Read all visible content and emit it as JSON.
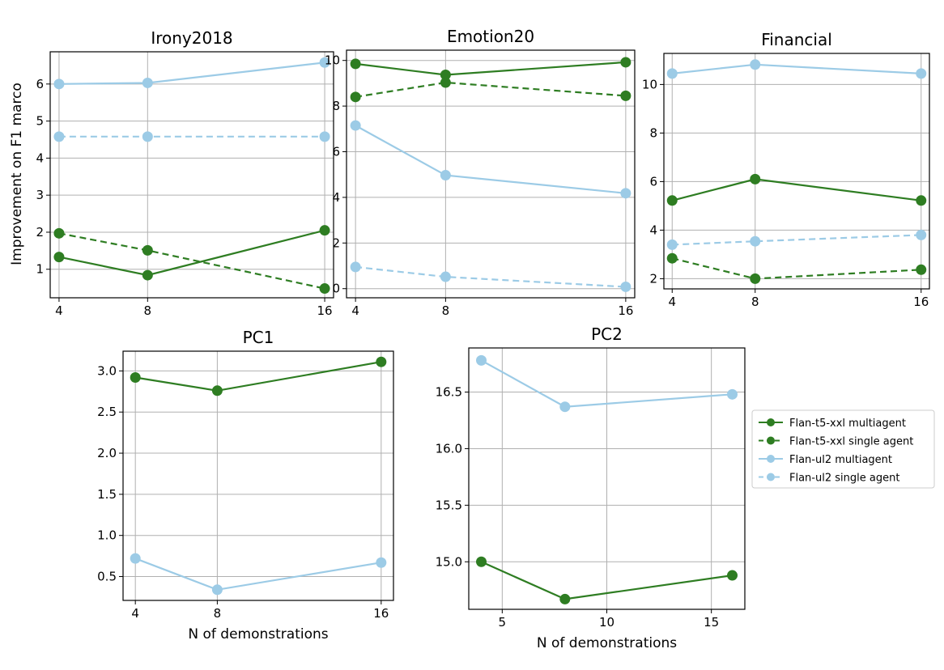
{
  "figure": {
    "ylabel": "Improvement on F1 marco",
    "legend": {
      "placement": "right",
      "entries": [
        {
          "label": "Flan-t5-xxl multiagent",
          "color": "#2e7d22",
          "dashed": false
        },
        {
          "label": "Flan-t5-xxl single agent",
          "color": "#2e7d22",
          "dashed": true
        },
        {
          "label": "Flan-ul2 multiagent",
          "color": "#9ccbe6",
          "dashed": false
        },
        {
          "label": "Flan-ul2 single agent",
          "color": "#9ccbe6",
          "dashed": true
        }
      ]
    }
  },
  "chart_data": [
    {
      "type": "line",
      "title": "Irony2018",
      "xlabel": "",
      "ylabel": "Improvement on F1 marco",
      "x": [
        4,
        8,
        16
      ],
      "xticks": [
        4,
        8,
        16
      ],
      "xlim": [
        3.6,
        16.4
      ],
      "yticks": [
        1,
        2,
        3,
        4,
        5,
        6
      ],
      "ylim": [
        0.23,
        6.87
      ],
      "grid": true,
      "series": [
        {
          "name": "Flan-t5-xxl multiagent",
          "values": [
            1.33,
            0.84,
            2.05
          ],
          "color": "#2e7d22",
          "dashed": false
        },
        {
          "name": "Flan-t5-xxl single agent",
          "values": [
            1.97,
            1.51,
            0.48
          ],
          "color": "#2e7d22",
          "dashed": true
        },
        {
          "name": "Flan-ul2 multiagent",
          "values": [
            6.0,
            6.03,
            6.58
          ],
          "color": "#9ccbe6",
          "dashed": false
        },
        {
          "name": "Flan-ul2 single agent",
          "values": [
            4.58,
            4.58,
            4.58
          ],
          "color": "#9ccbe6",
          "dashed": true
        }
      ]
    },
    {
      "type": "line",
      "title": "Emotion20",
      "xlabel": "",
      "ylabel": "",
      "x": [
        4,
        8,
        16
      ],
      "xticks": [
        4,
        8,
        16
      ],
      "xlim": [
        3.6,
        16.4
      ],
      "yticks": [
        0,
        2,
        4,
        6,
        8,
        10
      ],
      "ylim": [
        -0.4,
        10.45
      ],
      "grid": true,
      "series": [
        {
          "name": "Flan-t5-xxl multiagent",
          "values": [
            9.85,
            9.37,
            9.92
          ],
          "color": "#2e7d22",
          "dashed": false
        },
        {
          "name": "Flan-t5-xxl single agent",
          "values": [
            8.4,
            9.03,
            8.45
          ],
          "color": "#2e7d22",
          "dashed": true
        },
        {
          "name": "Flan-ul2 multiagent",
          "values": [
            7.15,
            4.97,
            4.18
          ],
          "color": "#9ccbe6",
          "dashed": false
        },
        {
          "name": "Flan-ul2 single agent",
          "values": [
            0.95,
            0.52,
            0.08
          ],
          "color": "#9ccbe6",
          "dashed": true
        }
      ]
    },
    {
      "type": "line",
      "title": "Financial",
      "xlabel": "",
      "ylabel": "",
      "x": [
        4,
        8,
        16
      ],
      "xticks": [
        4,
        8,
        16
      ],
      "xlim": [
        3.6,
        16.4
      ],
      "yticks": [
        2,
        4,
        6,
        8,
        10
      ],
      "ylim": [
        1.58,
        11.28
      ],
      "grid": true,
      "series": [
        {
          "name": "Flan-t5-xxl multiagent",
          "values": [
            5.22,
            6.1,
            5.22
          ],
          "color": "#2e7d22",
          "dashed": false
        },
        {
          "name": "Flan-t5-xxl single agent",
          "values": [
            2.84,
            2.0,
            2.37
          ],
          "color": "#2e7d22",
          "dashed": true
        },
        {
          "name": "Flan-ul2 multiagent",
          "values": [
            10.45,
            10.82,
            10.45
          ],
          "color": "#9ccbe6",
          "dashed": false
        },
        {
          "name": "Flan-ul2 single agent",
          "values": [
            3.4,
            3.54,
            3.8
          ],
          "color": "#9ccbe6",
          "dashed": true
        }
      ]
    },
    {
      "type": "line",
      "title": "PC1",
      "xlabel": "N of demonstrations",
      "ylabel": "",
      "x": [
        4,
        8,
        16
      ],
      "xticks": [
        4,
        8,
        16
      ],
      "xlim": [
        3.4,
        16.6
      ],
      "yticks": [
        0.5,
        1.0,
        1.5,
        2.0,
        2.5,
        3.0
      ],
      "ylim": [
        0.21,
        3.24
      ],
      "grid": true,
      "series": [
        {
          "name": "Flan-t5-xxl multiagent",
          "values": [
            2.92,
            2.76,
            3.11
          ],
          "color": "#2e7d22",
          "dashed": false
        },
        {
          "name": "Flan-ul2 multiagent",
          "values": [
            0.72,
            0.34,
            0.67
          ],
          "color": "#9ccbe6",
          "dashed": false
        }
      ]
    },
    {
      "type": "line",
      "title": "PC2",
      "xlabel": "N of demonstrations",
      "ylabel": "",
      "x": [
        4,
        8,
        16
      ],
      "xticks": [
        5,
        10,
        15
      ],
      "xlim": [
        3.4,
        16.6
      ],
      "yticks": [
        15.0,
        15.5,
        16.0,
        16.5
      ],
      "ylim": [
        14.58,
        16.89
      ],
      "grid": true,
      "series": [
        {
          "name": "Flan-t5-xxl multiagent",
          "values": [
            15.0,
            14.67,
            14.88
          ],
          "color": "#2e7d22",
          "dashed": false
        },
        {
          "name": "Flan-ul2 multiagent",
          "values": [
            16.78,
            16.37,
            16.48
          ],
          "color": "#9ccbe6",
          "dashed": false
        }
      ]
    }
  ]
}
